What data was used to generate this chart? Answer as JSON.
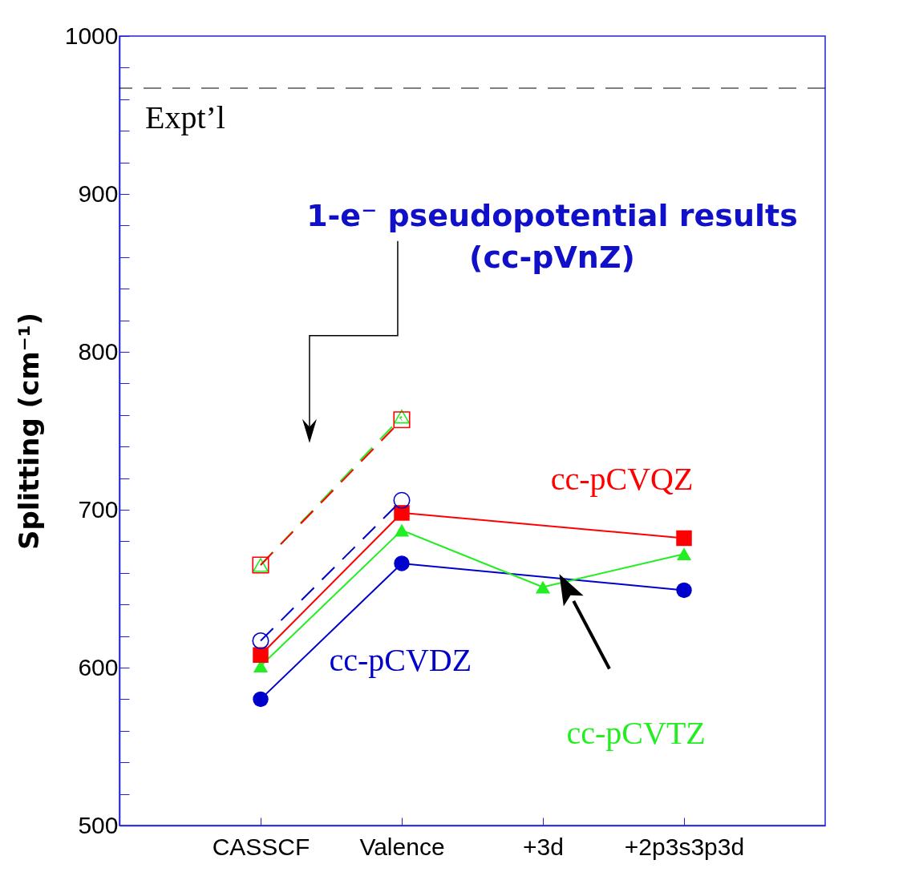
{
  "chart_data": {
    "type": "line",
    "ylabel": "Splitting (cm⁻¹)",
    "categories": [
      "CASSCF",
      "Valence",
      "+3d",
      "+2p3s3p3d"
    ],
    "ylim": [
      500,
      1000
    ],
    "yticks": [
      500,
      {
        "value": 520,
        "label": null
      },
      {
        "value": 540,
        "label": null
      },
      {
        "value": 560,
        "label": null
      },
      {
        "value": 580,
        "label": null
      },
      600,
      {
        "value": 620,
        "label": null
      },
      {
        "value": 640,
        "label": null
      },
      {
        "value": 660,
        "label": null
      },
      {
        "value": 680,
        "label": null
      },
      700,
      {
        "value": 720,
        "label": null
      },
      {
        "value": 740,
        "label": null
      },
      {
        "value": 760,
        "label": null
      },
      {
        "value": 780,
        "label": null
      },
      800,
      {
        "value": 820,
        "label": null
      },
      {
        "value": 840,
        "label": null
      },
      {
        "value": 860,
        "label": null
      },
      {
        "value": 880,
        "label": null
      },
      900,
      {
        "value": 920,
        "label": null
      },
      {
        "value": 940,
        "label": null
      },
      {
        "value": 960,
        "label": null
      },
      {
        "value": 980,
        "label": null
      },
      1000
    ],
    "grid": false,
    "series": [
      {
        "name": "cc-pCVDZ",
        "color": "#0000cc",
        "marker": "circle",
        "line_style": "solid",
        "x": [
          "CASSCF",
          "Valence",
          "+2p3s3p3d"
        ],
        "values": [
          580,
          666,
          649
        ]
      },
      {
        "name": "cc-pCVTZ",
        "color": "#22ee22",
        "marker": "triangle",
        "line_style": "solid",
        "x": [
          "CASSCF",
          "Valence",
          "+3d",
          "+2p3s3p3d"
        ],
        "values": [
          601,
          687,
          651,
          672
        ]
      },
      {
        "name": "cc-pCVQZ",
        "color": "#ff0000",
        "marker": "square",
        "line_style": "solid",
        "x": [
          "CASSCF",
          "Valence",
          "+2p3s3p3d"
        ],
        "values": [
          608,
          698,
          682
        ]
      },
      {
        "color": "#0000cc",
        "marker": "circle",
        "line_style": "dashed",
        "x": [
          "CASSCF",
          "Valence"
        ],
        "values": [
          617,
          706
        ]
      },
      {
        "color": "#22ee22",
        "marker": "triangle",
        "line_style": "dashed",
        "x": [
          "CASSCF",
          "Valence"
        ],
        "values": [
          665,
          759
        ]
      },
      {
        "color": "#ff0000",
        "marker": "square",
        "line_style": "dashed",
        "x": [
          "CASSCF",
          "Valence"
        ],
        "values": [
          665,
          757
        ]
      }
    ],
    "ref_lines": [
      {
        "axis": "y",
        "value": 967,
        "label": "Expt’l",
        "color": "#000000",
        "line_style": "dashed"
      }
    ],
    "annotations": [
      "1-e⁻ pseudopotential results (cc-pVnZ)"
    ]
  }
}
